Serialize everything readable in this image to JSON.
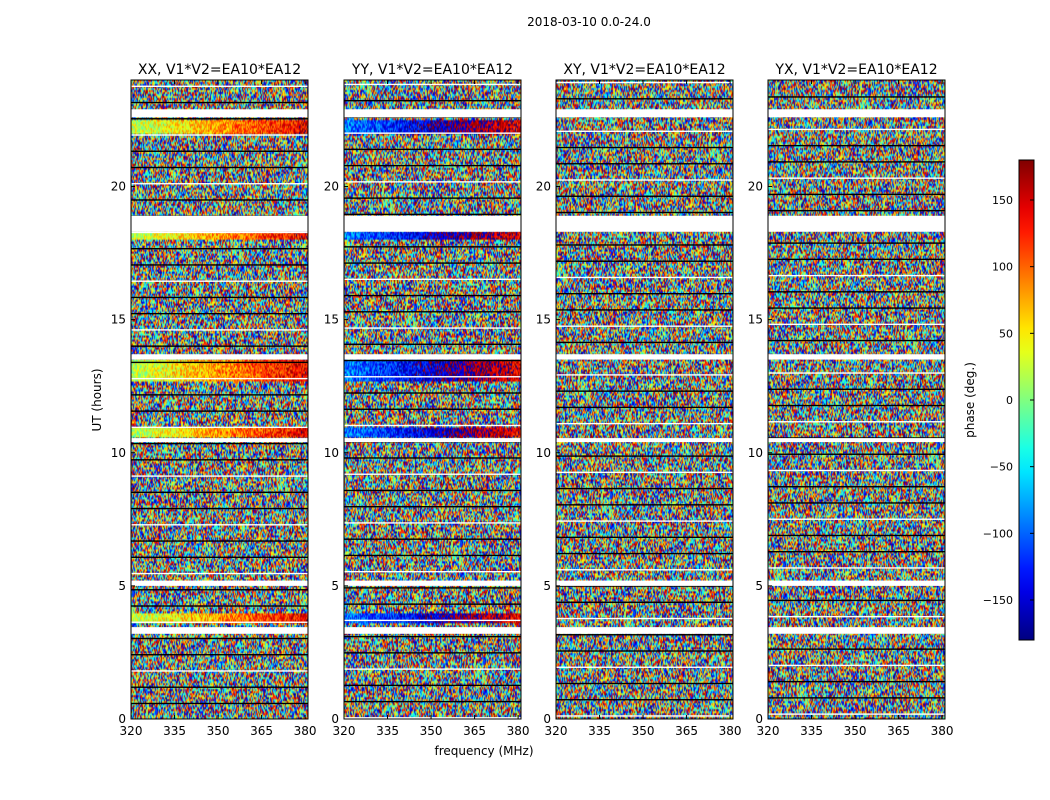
{
  "chart_data": {
    "type": "heatmap",
    "suptitle": "2018-03-10 0.0-24.0",
    "xlabel": "frequency (MHz)",
    "ylabel": "UT (hours)",
    "xlim": [
      320,
      381
    ],
    "ylim": [
      0,
      24
    ],
    "xticks": [
      320,
      335,
      350,
      365,
      380
    ],
    "yticks": [
      0,
      5,
      10,
      15,
      20
    ],
    "panels": [
      {
        "title": "XX, V1*V2=EA10*EA12"
      },
      {
        "title": "YY, V1*V2=EA10*EA12"
      },
      {
        "title": "XY, V1*V2=EA10*EA12"
      },
      {
        "title": "YX, V1*V2=EA10*EA12"
      }
    ],
    "colorbar": {
      "label": "phase (deg.)",
      "range": [
        -180,
        180
      ],
      "ticks": [
        -150,
        -100,
        -50,
        0,
        50,
        100,
        150
      ],
      "colormap": "jet"
    },
    "blank_bands_hours": [
      [
        3.2,
        3.45
      ],
      [
        18.3,
        18.9
      ],
      [
        22.6,
        22.9
      ],
      [
        5.0,
        5.2
      ],
      [
        13.5,
        13.7
      ],
      [
        10.4,
        10.55
      ]
    ],
    "coherent_bands_hours": [
      [
        3.6,
        4.0
      ],
      [
        10.6,
        10.95
      ],
      [
        12.7,
        13.5
      ],
      [
        18.0,
        18.3
      ],
      [
        22.0,
        22.5
      ]
    ]
  }
}
